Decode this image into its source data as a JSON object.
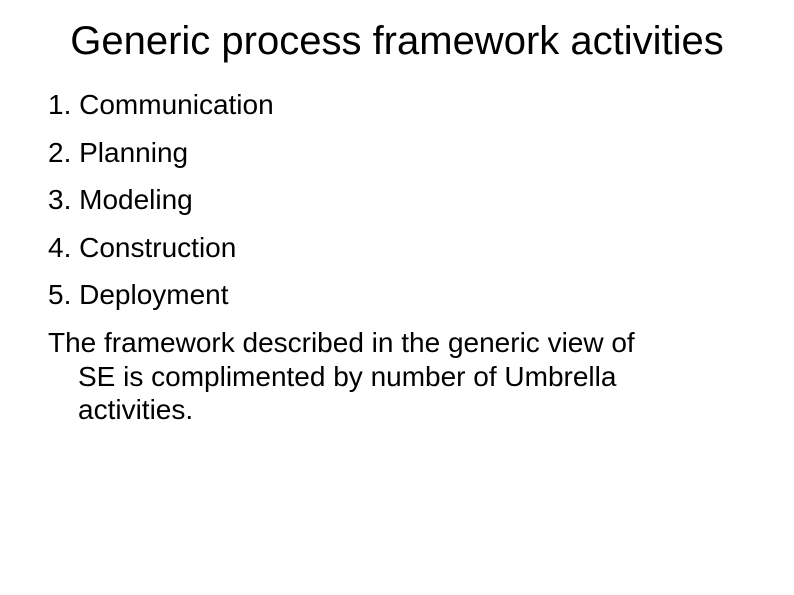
{
  "type": "slide",
  "background_color": "#ffffff",
  "text_color": "#000000",
  "font_family": "Arial",
  "title": {
    "text": "Generic process framework activities",
    "fontsize": 40,
    "align": "center",
    "weight": 400
  },
  "list": {
    "fontsize": 28,
    "items": [
      "1. Communication",
      "2. Planning",
      "3. Modeling",
      "4. Construction",
      "5. Deployment"
    ]
  },
  "paragraph": {
    "fontsize": 28,
    "line1": "The framework described in the generic view of",
    "line2": "SE is complimented by number of Umbrella",
    "line3": "activities."
  }
}
